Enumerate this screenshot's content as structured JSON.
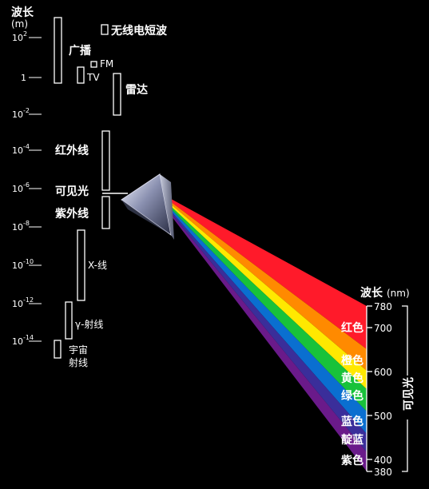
{
  "axis": {
    "title": "波长",
    "unit": "(m)",
    "ticks": [
      {
        "base": "10",
        "exp": "2"
      },
      {
        "base": "1",
        "exp": ""
      },
      {
        "base": "10",
        "exp": "-2"
      },
      {
        "base": "10",
        "exp": "-4"
      },
      {
        "base": "10",
        "exp": "-6"
      },
      {
        "base": "10",
        "exp": "-8"
      },
      {
        "base": "10",
        "exp": "-10"
      },
      {
        "base": "10",
        "exp": "-12"
      },
      {
        "base": "10",
        "exp": "-14"
      }
    ]
  },
  "bands": {
    "radio_wave": "无线电短波",
    "broadcast": "广播",
    "fm": "FM",
    "tv": "TV",
    "radar": "雷达",
    "infrared": "红外线",
    "visible": "可见光",
    "ultraviolet": "紫外线",
    "xray": "X-线",
    "gamma": "γ-射线",
    "cosmic_line1": "宇宙",
    "cosmic_line2": "射线"
  },
  "visible_scale": {
    "title": "波长",
    "unit": "(nm)",
    "vertical_label": "可见光",
    "ticks": [
      "780",
      "700",
      "600",
      "500",
      "400",
      "380"
    ]
  },
  "spectrum_colors": [
    {
      "name": "红色",
      "color": "#ff1a2a"
    },
    {
      "name": "橙色",
      "color": "#ff8a00"
    },
    {
      "name": "黄色",
      "color": "#ffe800"
    },
    {
      "name": "绿色",
      "color": "#18c23a"
    },
    {
      "name": "蓝色",
      "color": "#0a6fd0"
    },
    {
      "name": "靛蓝",
      "color": "#3a2e9a"
    },
    {
      "name": "紫色",
      "color": "#6a1a8a"
    }
  ]
}
